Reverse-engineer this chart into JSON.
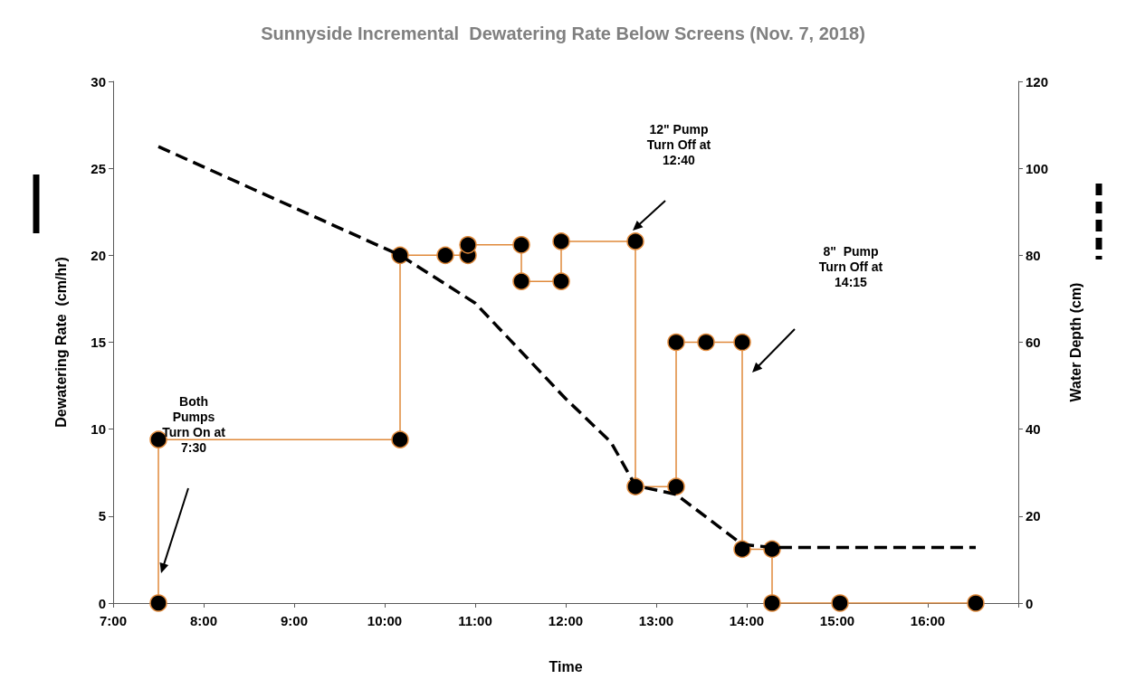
{
  "chart_data": {
    "type": "line",
    "title": "Sunnyside Incremental  Dewatering Rate Below Screens (Nov. 7, 2018)",
    "xlabel": "Time",
    "ylabel": "Dewatering Rate  (cm/hr)",
    "y2label": "Water Depth (cm)",
    "xlim": [
      7,
      17
    ],
    "xticks": [
      {
        "value": 7,
        "label": "7:00"
      },
      {
        "value": 8,
        "label": "8:00"
      },
      {
        "value": 9,
        "label": "9:00"
      },
      {
        "value": 10,
        "label": "10:00"
      },
      {
        "value": 11,
        "label": "11:00"
      },
      {
        "value": 12,
        "label": "12:00"
      },
      {
        "value": 13,
        "label": "13:00"
      },
      {
        "value": 14,
        "label": "14:00"
      },
      {
        "value": 15,
        "label": "15:00"
      },
      {
        "value": 16,
        "label": "16:00"
      },
      {
        "value": 17,
        "label": null
      }
    ],
    "ylim": [
      0,
      30
    ],
    "yticks": [
      0,
      5,
      10,
      15,
      20,
      25,
      30
    ],
    "y2lim": [
      0,
      120
    ],
    "y2ticks": [
      0,
      20,
      40,
      60,
      80,
      100,
      120
    ],
    "grid": false,
    "series": [
      {
        "color": "#e0893a",
        "marker": "circle",
        "line_style": "solid",
        "x": [
          7.5,
          7.5,
          10.17,
          10.17,
          10.67,
          10.92,
          10.92,
          11.51,
          11.51,
          11.95,
          11.95,
          12.77,
          12.77,
          13.22,
          13.22,
          13.55,
          13.95,
          13.95,
          14.28,
          14.28,
          15.03,
          16.53
        ],
        "values": [
          0,
          9.4,
          9.4,
          20,
          20,
          20,
          20.6,
          20.6,
          18.5,
          18.5,
          20.8,
          20.8,
          6.7,
          6.7,
          15,
          15,
          15,
          3.1,
          3.1,
          0,
          0,
          0
        ]
      },
      {
        "color": "#000000",
        "marker": "none",
        "line_style": "dashed",
        "axis": "y2",
        "x": [
          7.5,
          10.17,
          11,
          12,
          12.5,
          12.77,
          13.22,
          13.95,
          14.28,
          16.53
        ],
        "values": [
          105,
          80,
          69,
          47,
          37,
          27,
          25,
          13.5,
          12.8,
          12.8
        ]
      }
    ],
    "annotations": [
      "Both\nPumps\nTurn On at\n7:30",
      "12\" Pump\nTurn Off at\n12:40",
      "8\"  Pump\nTurn Off at\n14:15"
    ]
  }
}
